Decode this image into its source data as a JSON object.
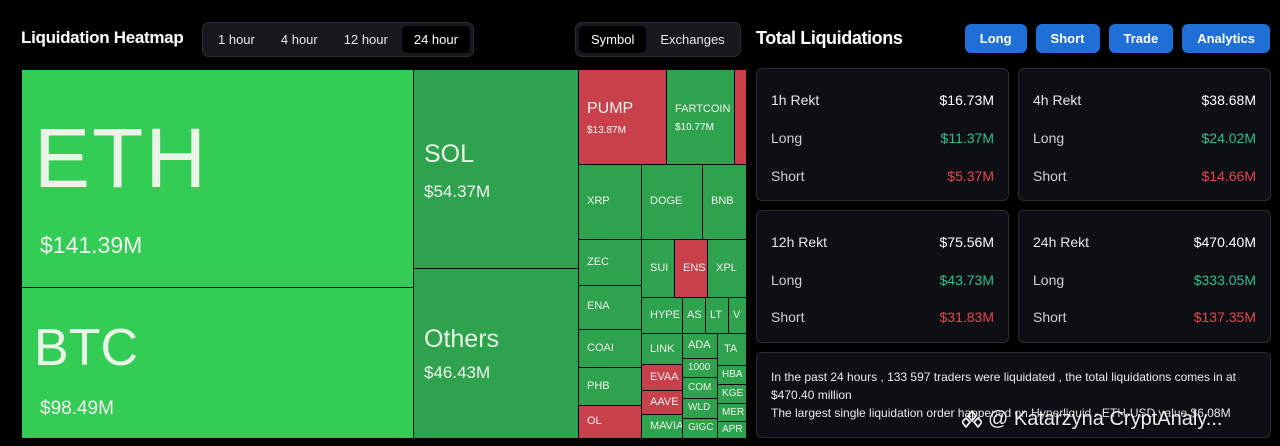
{
  "heatmap": {
    "title": "Liquidation Heatmap",
    "time_tabs": [
      "1 hour",
      "4 hour",
      "12 hour",
      "24 hour"
    ],
    "active_time": "24 hour",
    "view_tabs": [
      "Symbol",
      "Exchanges"
    ],
    "active_view": "Symbol",
    "tiles": {
      "eth": {
        "symbol": "ETH",
        "value": "$141.39M"
      },
      "btc": {
        "symbol": "BTC",
        "value": "$98.49M"
      },
      "sol": {
        "symbol": "SOL",
        "value": "$54.37M"
      },
      "others": {
        "symbol": "Others",
        "value": "$46.43M"
      },
      "pump": {
        "symbol": "PUMP",
        "value": "$13.87M"
      },
      "fartcoin": {
        "symbol": "FARTCOIN",
        "value": "$10.77M"
      },
      "xrp": "XRP",
      "doge": "DOGE",
      "bnb": "BNB",
      "zec": "ZEC",
      "sui": "SUI",
      "ens": "ENS",
      "xpl": "XPL",
      "ena": "ENA",
      "hype": "HYPE",
      "as": "AS",
      "lt": "LT",
      "v": "V",
      "coai": "COAI",
      "link": "LINK",
      "ada": "ADA",
      "ta": "TA",
      "phb": "PHB",
      "evaa": "EVAA",
      "t1000": "1000",
      "hba": "HBA",
      "com": "COM",
      "kge": "KGE",
      "ol": "OL",
      "aave": "AAVE",
      "wld": "WLD",
      "mer": "MER",
      "mavia": "MAVIA",
      "gig": "GIGC",
      "apr": "APR"
    }
  },
  "totals": {
    "title": "Total Liquidations",
    "buttons": [
      "Long",
      "Short",
      "Trade",
      "Analytics"
    ],
    "cards": [
      {
        "label": "1h Rekt",
        "total": "$16.73M",
        "long_label": "Long",
        "long": "$11.37M",
        "short_label": "Short",
        "short": "$5.37M"
      },
      {
        "label": "4h Rekt",
        "total": "$38.68M",
        "long_label": "Long",
        "long": "$24.02M",
        "short_label": "Short",
        "short": "$14.66M"
      },
      {
        "label": "12h Rekt",
        "total": "$75.56M",
        "long_label": "Long",
        "long": "$43.73M",
        "short_label": "Short",
        "short": "$31.83M"
      },
      {
        "label": "24h Rekt",
        "total": "$470.40M",
        "long_label": "Long",
        "long": "$333.05M",
        "short_label": "Short",
        "short": "$137.35M"
      }
    ],
    "info_line1": "In the past 24 hours , 133 597 traders were liquidated , the total liquidations comes in at $470.40 million",
    "info_line2": "The largest single liquidation order happened on Hyperliquid - ETH-USD value $6.08M"
  },
  "watermark": "@ Katarzyna CryptAnaly...",
  "colors": {
    "long": "#2fbf8c",
    "short": "#e5484d",
    "accent": "#1f6fd6",
    "tile_green": "#33cc55",
    "tile_red": "#c8414a"
  }
}
